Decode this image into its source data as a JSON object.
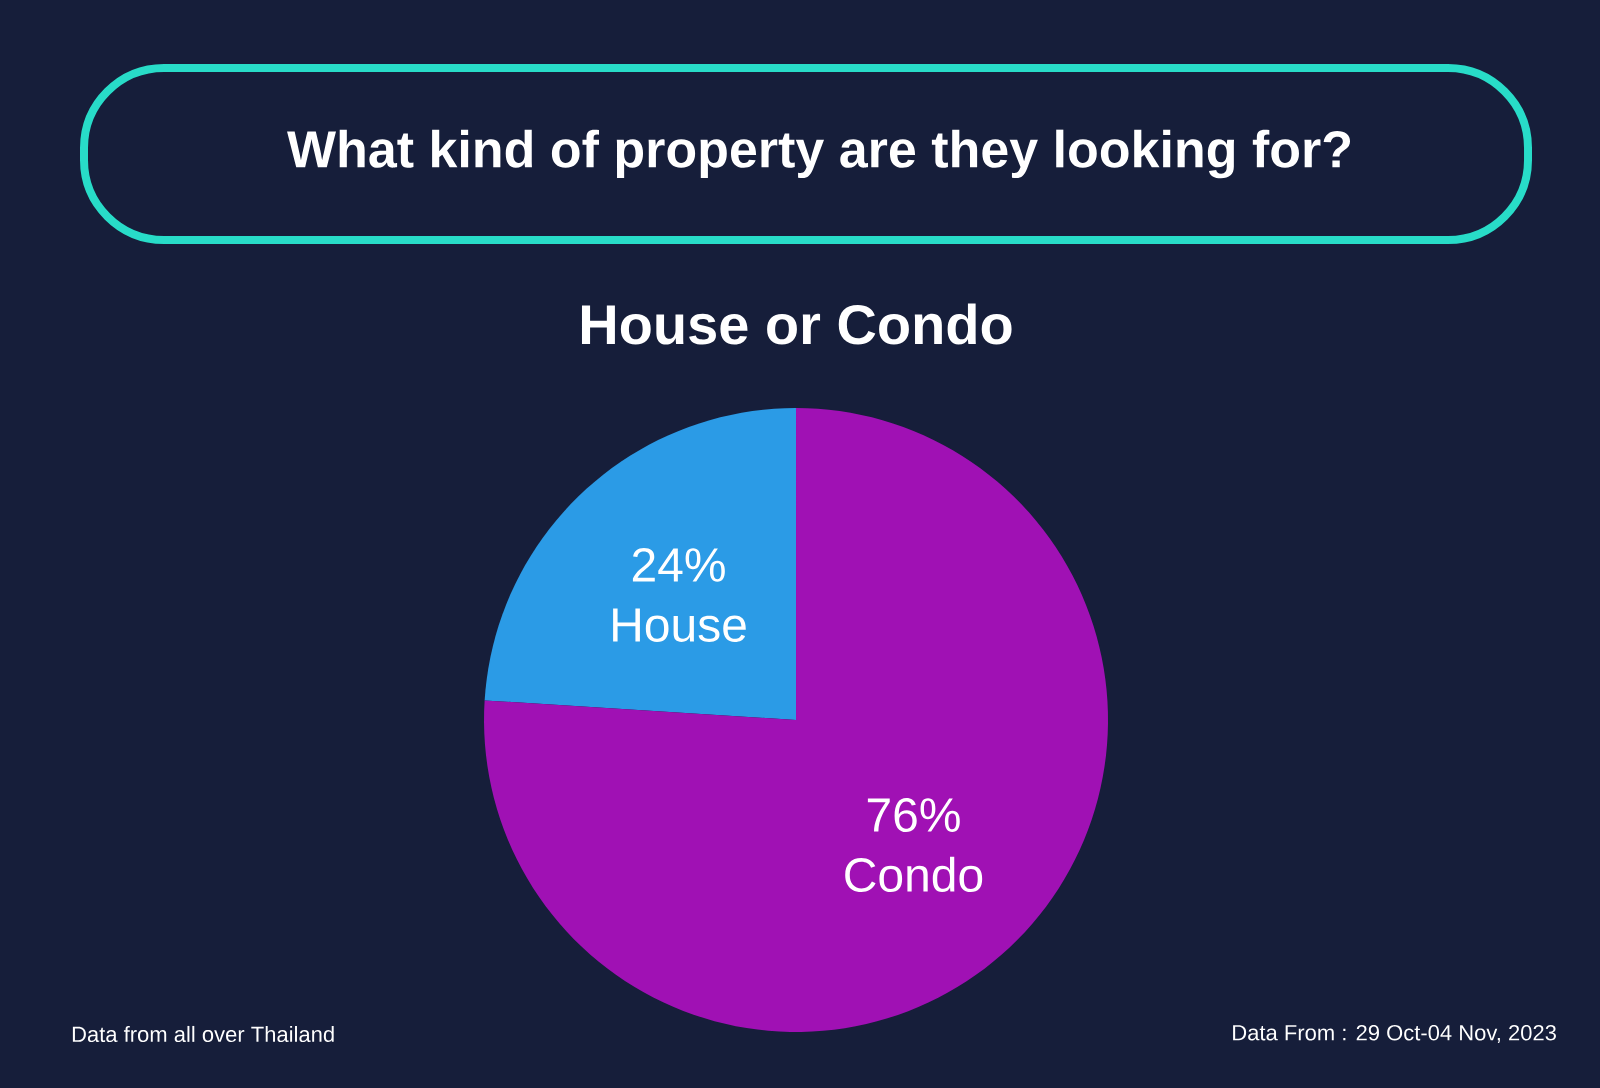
{
  "chart_data": {
    "type": "pie",
    "title": "What kind of property are they looking for?",
    "subtitle": "House or Condo",
    "categories": [
      "House",
      "Condo"
    ],
    "values": [
      24,
      76
    ],
    "colors": [
      "#2b9be6",
      "#a011b4"
    ],
    "value_labels": [
      "24%",
      "76%"
    ],
    "annotations": [
      "Data from all over Thailand",
      "Data From : 29 Oct-04 Nov, 2023"
    ]
  }
}
